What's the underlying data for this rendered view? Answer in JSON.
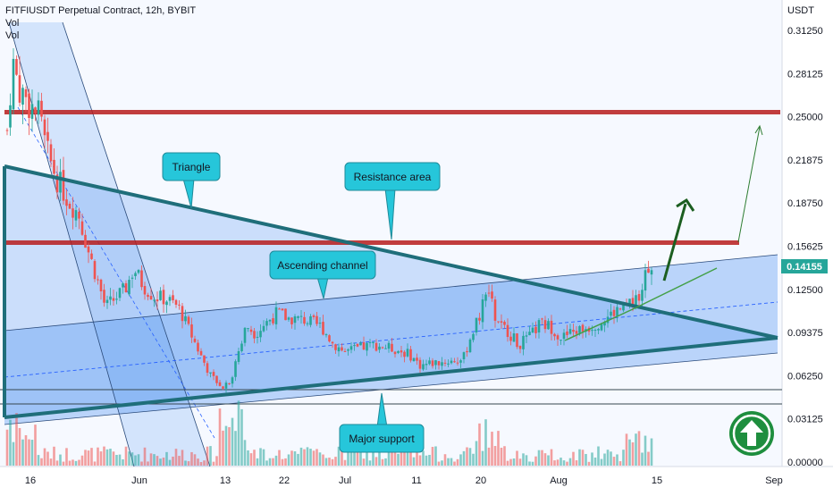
{
  "header": {
    "title": "FITFIUSDT Perpetual Contract, 12h, BYBIT",
    "indicators": [
      "Vol",
      "Vol"
    ]
  },
  "axis": {
    "currency": "USDT",
    "price_label": "0.14155",
    "price_label_color": "#26a69a"
  },
  "annotations": {
    "triangle": "Triangle",
    "resistance": "Resistance area",
    "channel": "Ascending channel",
    "support": "Major support"
  },
  "icons": {
    "up_badge": "arrow-up-circle-icon"
  },
  "colors": {
    "up": "#26a69a",
    "down": "#ef5350",
    "resistance": "#b71c1c",
    "triangle": "#1f6e7a",
    "channel_fill": "#2962ff",
    "callout": "#26c6da",
    "badge": "#1e8e3e"
  },
  "chart_data": {
    "type": "candlestick",
    "title": "FITFIUSDT Perpetual Contract, 12h, BYBIT",
    "ylim": [
      0,
      0.33
    ],
    "y_ticks": [
      "0.31250",
      "0.28125",
      "0.25000",
      "0.21875",
      "0.18750",
      "0.15625",
      "0.12500",
      "0.09375",
      "0.06250",
      "0.03125",
      "0.00000"
    ],
    "x_ticks": [
      "16",
      "Jun",
      "13",
      "22",
      "Jul",
      "11",
      "20",
      "Aug",
      "15",
      "Sep"
    ],
    "last_price": 0.14155,
    "resistance_levels": [
      0.253,
      0.157
    ],
    "support_level": 0.05
  }
}
